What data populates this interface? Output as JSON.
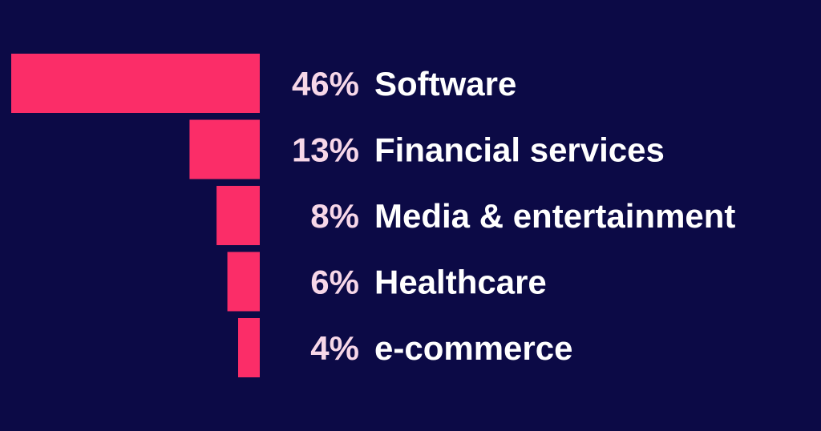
{
  "chart_data": {
    "type": "bar",
    "orientation": "horizontal",
    "categories": [
      "Software",
      "Financial services",
      "Media & entertainment",
      "Healthcare",
      "e-commerce"
    ],
    "values": [
      46,
      13,
      8,
      6,
      4
    ],
    "value_labels": [
      "46%",
      "13%",
      "8%",
      "6%",
      "4%"
    ],
    "unit": "%",
    "title": "",
    "xlabel": "",
    "ylabel": "",
    "grid": false,
    "legend": "none"
  },
  "colors": {
    "background": "#0c0a46",
    "bar": "#fb2d68",
    "value_text": "#f7d7e8",
    "category_text": "#ffffff"
  }
}
